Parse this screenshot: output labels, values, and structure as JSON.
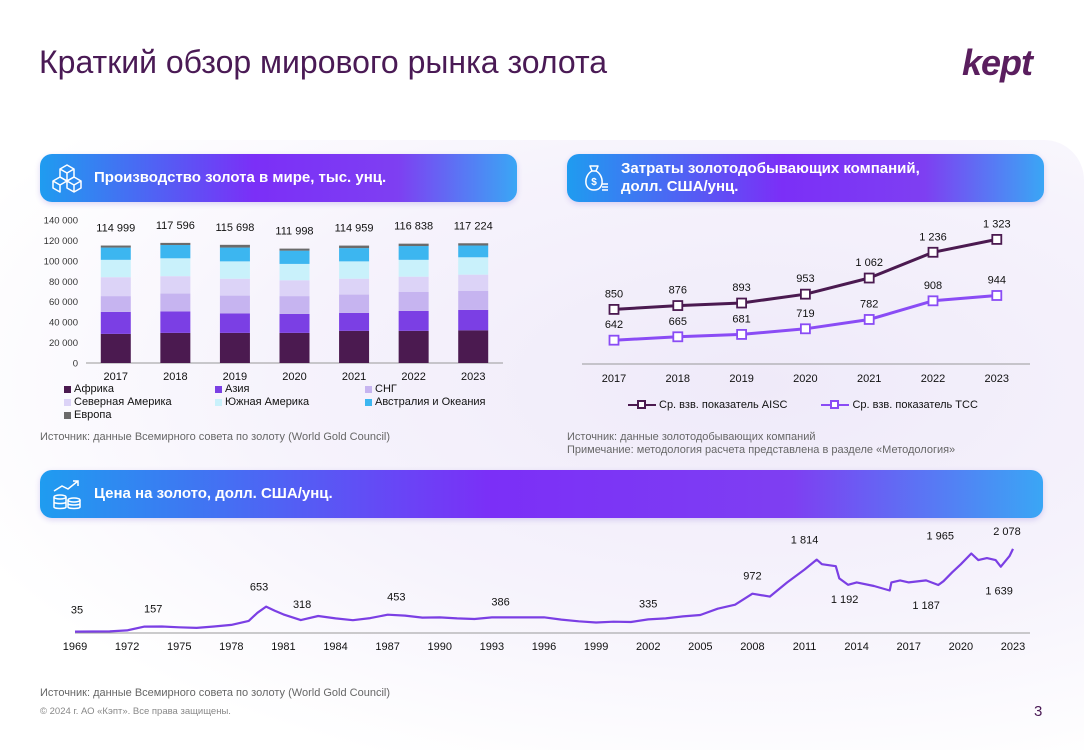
{
  "page": {
    "title": "Краткий обзор мирового рынка золота",
    "logo": "kept",
    "page_number": "3",
    "copyright": "© 2024 г. АО «Кэпт». Все права защищены."
  },
  "colors": {
    "title": "#4a1a55",
    "africa": "#4b1a50",
    "asia": "#7b3fe4",
    "cis": "#c6b4f0",
    "north_america": "#dcd3f7",
    "south_america": "#c9f1fb",
    "australia": "#3cb6f0",
    "europe": "#6b6b6b",
    "aisc": "#4b1a50",
    "tcc": "#8a4cf5",
    "price": "#7b3fe4"
  },
  "sections": {
    "production": {
      "title": "Производство золота в мире, тыс. унц.",
      "icon": "cubes-icon",
      "source": "Источник:  данные Всемирного совета по золоту (World Gold Council)"
    },
    "costs": {
      "title_line1": "Затраты золотодобывающих компаний,",
      "title_line2": "долл. США/унц.",
      "icon": "money-bag-icon",
      "source": "Источник: данные золотодобывающих компаний",
      "note": "Примечание: методология расчета представлена в разделе «Методология»"
    },
    "price": {
      "title": "Цена на золото, долл. США/унц.",
      "icon": "coins-growth-icon",
      "source": "Источник: данные Всемирного совета по золоту (World Gold Council)"
    }
  },
  "chart_data": [
    {
      "type": "bar",
      "stacked": true,
      "categories": [
        "2017",
        "2018",
        "2019",
        "2020",
        "2021",
        "2022",
        "2023"
      ],
      "totals": [
        114999,
        117596,
        115698,
        111998,
        114959,
        116838,
        117224
      ],
      "total_labels": [
        "114 999",
        "117 596",
        "115 698",
        "111 998",
        "114 959",
        "116 838",
        "117 224"
      ],
      "yticks": [
        "0",
        "20 000",
        "40 000",
        "60 000",
        "80 000",
        "100 000",
        "120 000",
        "140 000"
      ],
      "ylim": [
        0,
        140000
      ],
      "legend": [
        "Африка",
        "Азия",
        "СНГ",
        "Северная Америка",
        "Южная Америка",
        "Австралия и Океания",
        "Европа"
      ],
      "series": [
        {
          "name": "Африка",
          "values": [
            28500,
            29500,
            29500,
            29500,
            31500,
            31500,
            32000
          ]
        },
        {
          "name": "Азия",
          "values": [
            21500,
            21000,
            19000,
            18500,
            17500,
            19500,
            20000
          ]
        },
        {
          "name": "СНГ",
          "values": [
            15500,
            17500,
            17500,
            17500,
            18000,
            18500,
            18500
          ]
        },
        {
          "name": "Северная Америка",
          "values": [
            18500,
            17000,
            16500,
            15500,
            15500,
            15000,
            16000
          ]
        },
        {
          "name": "Южная Америка",
          "values": [
            17000,
            17500,
            17000,
            16000,
            17000,
            16500,
            17000
          ]
        },
        {
          "name": "Австралия и Океания",
          "values": [
            12000,
            13000,
            13500,
            13000,
            13000,
            13500,
            11500
          ]
        },
        {
          "name": "Европа",
          "values": [
            1999,
            2096,
            2698,
            1998,
            2459,
            2338,
            2224
          ]
        }
      ]
    },
    {
      "type": "line",
      "categories": [
        "2017",
        "2018",
        "2019",
        "2020",
        "2021",
        "2022",
        "2023"
      ],
      "legend": [
        "Ср. взв. показатель AISC",
        "Ср. взв. показатель TCC"
      ],
      "series": [
        {
          "name": "Ср. взв. показатель AISC",
          "values": [
            850,
            876,
            893,
            953,
            1062,
            1236,
            1323
          ],
          "labels": [
            "850",
            "876",
            "893",
            "953",
            "1 062",
            "1 236",
            "1 323"
          ]
        },
        {
          "name": "Ср. взв. показатель TCC",
          "values": [
            642,
            665,
            681,
            719,
            782,
            908,
            944
          ],
          "labels": [
            "642",
            "665",
            "681",
            "719",
            "782",
            "908",
            "944"
          ]
        }
      ]
    },
    {
      "type": "line",
      "xticks": [
        "1969",
        "1972",
        "1975",
        "1978",
        "1981",
        "1984",
        "1987",
        "1990",
        "1993",
        "1996",
        "1999",
        "2002",
        "2005",
        "2008",
        "2011",
        "2014",
        "2017",
        "2020",
        "2023"
      ],
      "xlim": [
        1969,
        2023
      ],
      "annotations": [
        {
          "x": 1969.0,
          "y": 35,
          "label": "35"
        },
        {
          "x": 1973.5,
          "y": 157,
          "label": "157"
        },
        {
          "x": 1980.0,
          "y": 653,
          "label": "653"
        },
        {
          "x": 1981.5,
          "y": 318,
          "label": "318"
        },
        {
          "x": 1987.5,
          "y": 453,
          "label": "453"
        },
        {
          "x": 1993.5,
          "y": 386,
          "label": "386"
        },
        {
          "x": 2002.0,
          "y": 335,
          "label": "335"
        },
        {
          "x": 2008.0,
          "y": 972,
          "label": "972"
        },
        {
          "x": 2011.0,
          "y": 1814,
          "label": "1 814"
        },
        {
          "x": 2012.5,
          "y": 1192,
          "label": "1 192"
        },
        {
          "x": 2018.0,
          "y": 1187,
          "label": "1 187"
        },
        {
          "x": 2019.5,
          "y": 1965,
          "label": "1 965"
        },
        {
          "x": 2022.2,
          "y": 1639,
          "label": "1 639"
        },
        {
          "x": 2023.0,
          "y": 2078,
          "label": "2 078"
        }
      ],
      "series": [
        {
          "name": "",
          "x": [
            1969,
            1970,
            1971,
            1972,
            1973,
            1974,
            1975,
            1976,
            1977,
            1978,
            1979,
            1979.5,
            1980,
            1980.5,
            1981,
            1982,
            1983,
            1984,
            1985,
            1986,
            1987,
            1988,
            1989,
            1990,
            1991,
            1992,
            1993,
            1994,
            1995,
            1996,
            1997,
            1998,
            1999,
            2000,
            2001,
            2002,
            2003,
            2004,
            2005,
            2006,
            2007,
            2008,
            2009,
            2010,
            2011,
            2011.7,
            2012,
            2012.8,
            2013,
            2013.5,
            2014,
            2015,
            2015.9,
            2016,
            2016.5,
            2017,
            2018,
            2018.7,
            2019,
            2019.5,
            2020,
            2020.6,
            2021,
            2021.5,
            2022,
            2022.3,
            2022.8,
            2023
          ],
          "y": [
            35,
            36,
            40,
            65,
            157,
            160,
            140,
            125,
            160,
            200,
            300,
            500,
            653,
            550,
            460,
            318,
            420,
            360,
            317,
            368,
            453,
            430,
            380,
            385,
            360,
            345,
            386,
            385,
            385,
            388,
            330,
            290,
            260,
            280,
            271,
            335,
            360,
            410,
            445,
            600,
            700,
            972,
            900,
            1250,
            1570,
            1814,
            1700,
            1650,
            1350,
            1192,
            1250,
            1160,
            1050,
            1250,
            1300,
            1250,
            1300,
            1187,
            1280,
            1500,
            1700,
            1965,
            1800,
            1850,
            1800,
            1639,
            1900,
            2078
          ]
        }
      ]
    }
  ]
}
